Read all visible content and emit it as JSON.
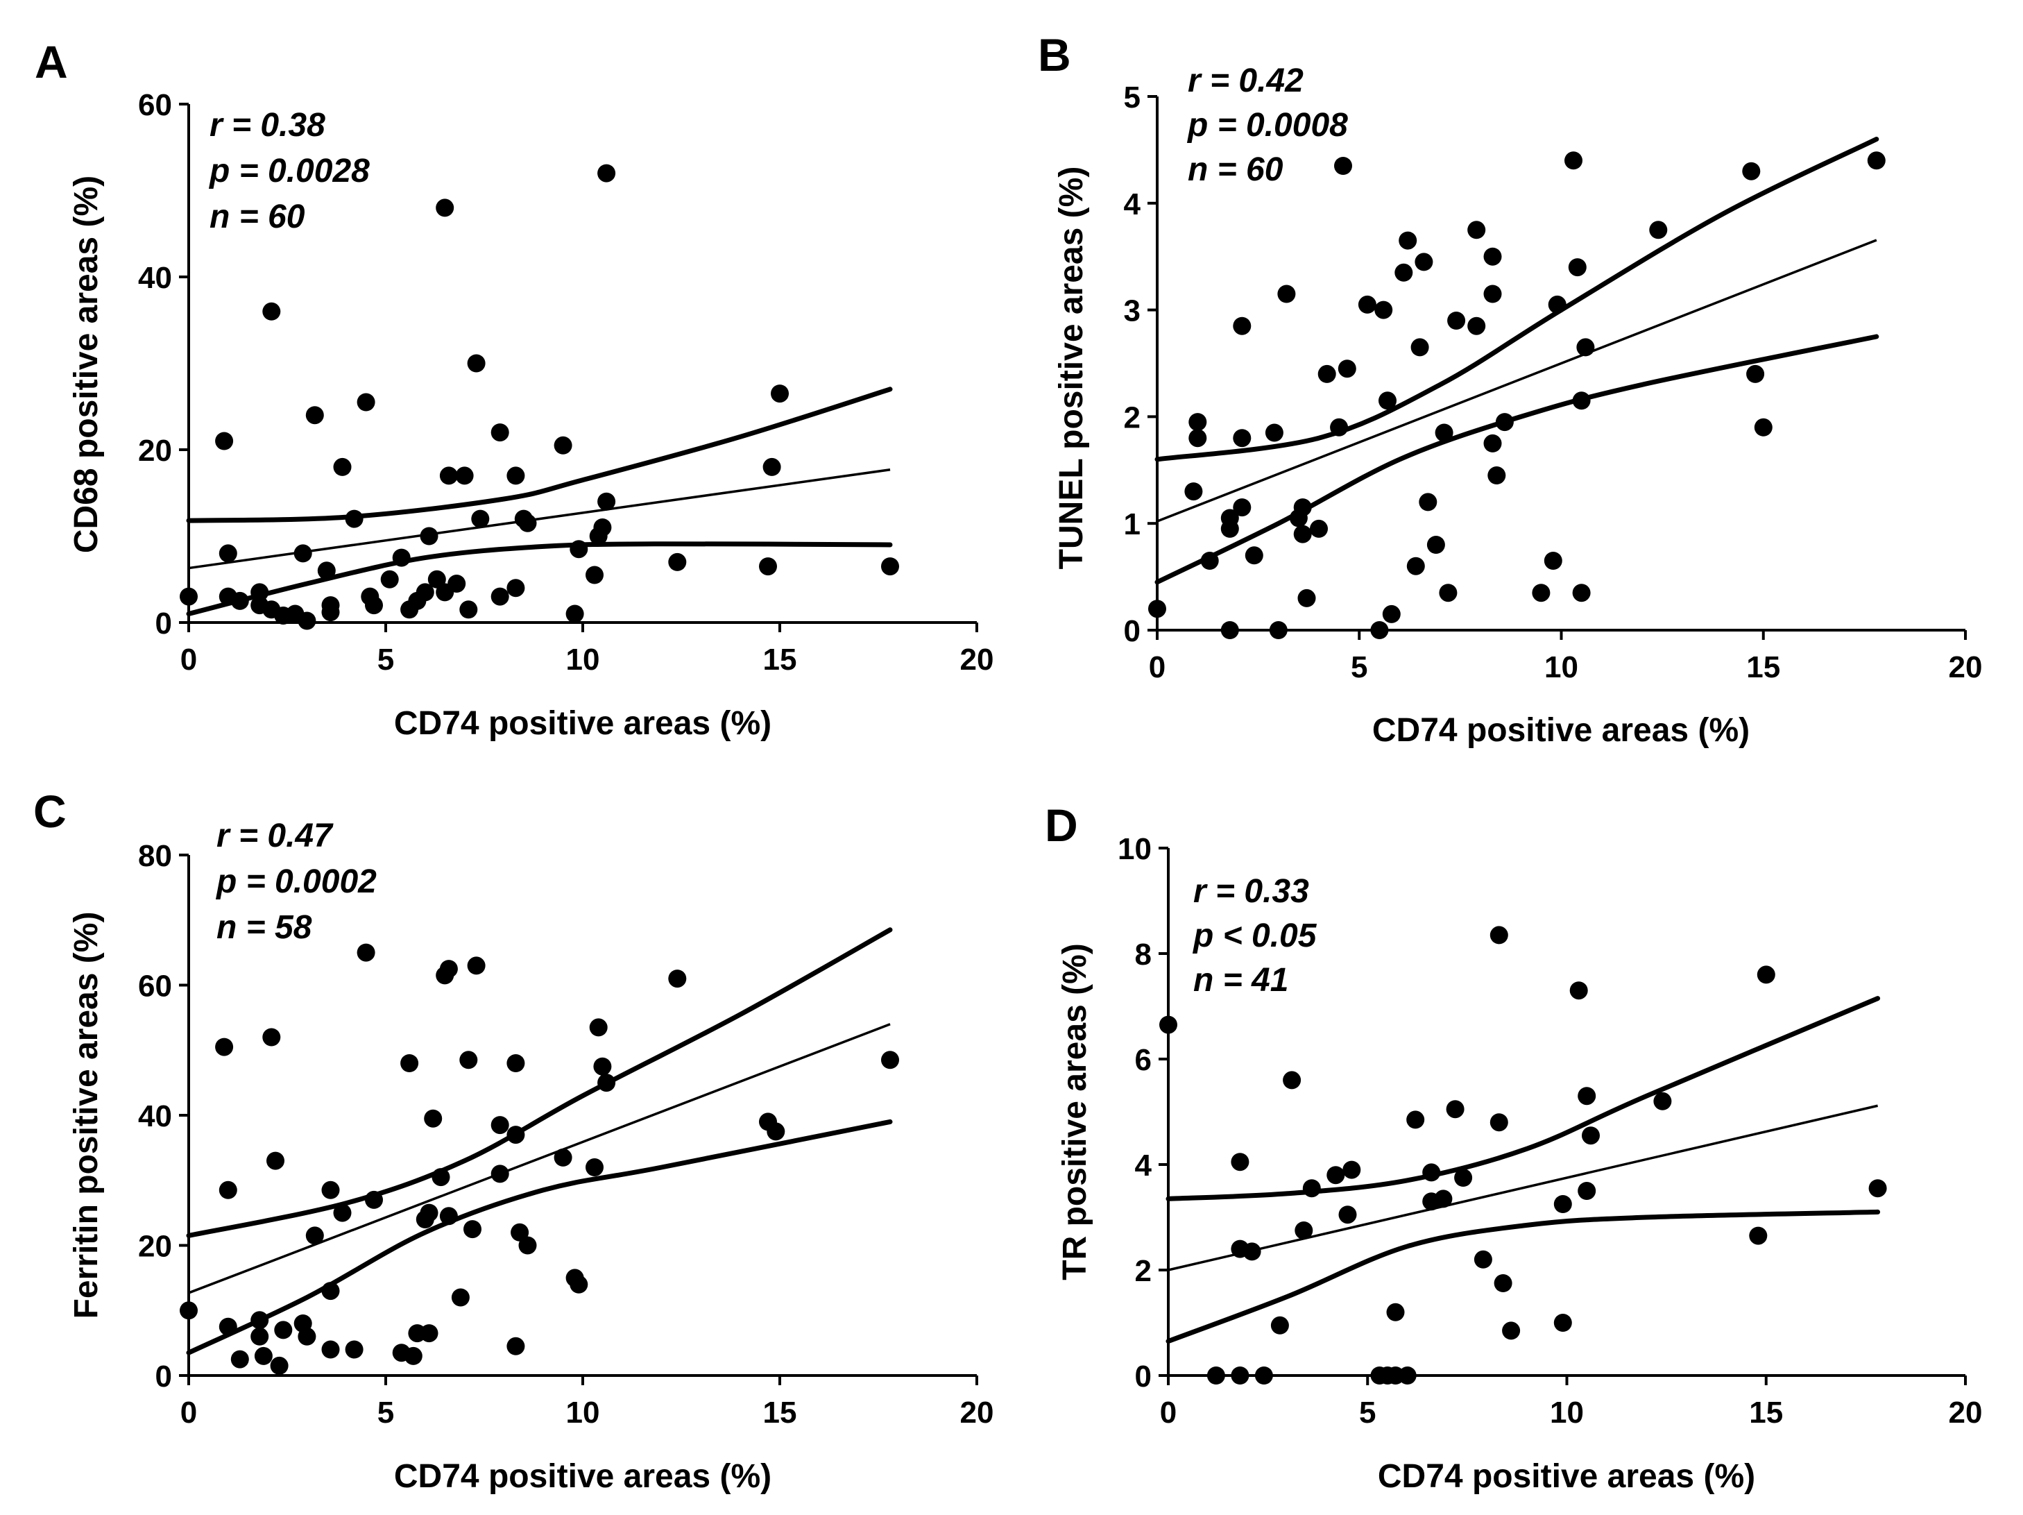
{
  "figure": {
    "background": "#ffffff",
    "ink_color": "#000000"
  },
  "chart_data": [
    {
      "panel": "A",
      "type": "scatter",
      "xlabel": "CD74 positive areas (%)",
      "ylabel": "CD68 positive areas (%)",
      "xlim": [
        0,
        20
      ],
      "ylim": [
        0,
        60
      ],
      "xticks": [
        0,
        5,
        10,
        15,
        20
      ],
      "yticks": [
        0,
        20,
        40,
        60
      ],
      "stats": [
        "r = 0.38",
        "p = 0.0028",
        "n = 60"
      ],
      "points": [
        [
          0,
          3
        ],
        [
          0.9,
          21
        ],
        [
          1,
          8
        ],
        [
          1,
          3
        ],
        [
          1.3,
          2.5
        ],
        [
          1.8,
          3.5
        ],
        [
          1.8,
          2
        ],
        [
          2.1,
          36
        ],
        [
          2.1,
          1.5
        ],
        [
          2.4,
          0.8
        ],
        [
          2.7,
          1
        ],
        [
          2.9,
          8
        ],
        [
          3,
          0.2
        ],
        [
          3.2,
          24
        ],
        [
          3.5,
          6
        ],
        [
          3.6,
          2
        ],
        [
          3.6,
          1.2
        ],
        [
          3.9,
          18
        ],
        [
          4.2,
          12
        ],
        [
          4.5,
          25.5
        ],
        [
          4.6,
          3
        ],
        [
          4.7,
          2
        ],
        [
          5.1,
          5
        ],
        [
          5.4,
          7.5
        ],
        [
          5.6,
          1.5
        ],
        [
          5.8,
          2.5
        ],
        [
          6,
          3.5
        ],
        [
          6.1,
          10
        ],
        [
          6.3,
          5
        ],
        [
          6.5,
          48
        ],
        [
          6.5,
          3.5
        ],
        [
          6.6,
          17
        ],
        [
          6.8,
          4.5
        ],
        [
          7,
          17
        ],
        [
          7.1,
          1.5
        ],
        [
          7.3,
          30
        ],
        [
          7.4,
          12
        ],
        [
          7.9,
          22
        ],
        [
          7.9,
          3
        ],
        [
          8.3,
          17
        ],
        [
          8.3,
          4
        ],
        [
          8.5,
          12
        ],
        [
          8.6,
          11.5
        ],
        [
          9.5,
          20.5
        ],
        [
          9.8,
          1
        ],
        [
          9.9,
          8.5
        ],
        [
          10.3,
          5.5
        ],
        [
          10.4,
          10
        ],
        [
          10.5,
          11
        ],
        [
          10.6,
          52
        ],
        [
          10.6,
          14
        ],
        [
          12.4,
          7
        ],
        [
          14.7,
          6.5
        ],
        [
          14.8,
          18
        ],
        [
          15,
          26.5
        ],
        [
          17.8,
          6.5
        ]
      ],
      "fit": {
        "intercept": 6.3,
        "slope": 0.64
      },
      "ci_upper": [
        [
          0,
          11.8
        ],
        [
          4,
          12.2
        ],
        [
          8,
          14.3
        ],
        [
          10,
          16.5
        ],
        [
          14,
          21.5
        ],
        [
          17.8,
          27
        ]
      ],
      "ci_lower": [
        [
          0,
          1
        ],
        [
          3,
          4.5
        ],
        [
          6,
          7.5
        ],
        [
          9,
          8.8
        ],
        [
          12,
          9.1
        ],
        [
          17.8,
          9
        ]
      ]
    },
    {
      "panel": "B",
      "type": "scatter",
      "xlabel": "CD74 positive areas (%)",
      "ylabel": "TUNEL positive areas (%)",
      "xlim": [
        0,
        20
      ],
      "ylim": [
        0,
        5
      ],
      "xticks": [
        0,
        5,
        10,
        15,
        20
      ],
      "yticks": [
        0,
        1,
        2,
        3,
        4,
        5
      ],
      "stats": [
        "r = 0.42",
        "p = 0.0008",
        "n = 60"
      ],
      "points": [
        [
          0,
          0.2
        ],
        [
          0.9,
          1.3
        ],
        [
          1,
          1.8
        ],
        [
          1,
          1.95
        ],
        [
          1.3,
          0.65
        ],
        [
          1.8,
          1.05
        ],
        [
          1.8,
          0.95
        ],
        [
          1.8,
          0
        ],
        [
          2.1,
          2.85
        ],
        [
          2.1,
          1.8
        ],
        [
          2.1,
          1.15
        ],
        [
          2.4,
          0.7
        ],
        [
          2.9,
          1.85
        ],
        [
          3,
          0
        ],
        [
          3.2,
          3.15
        ],
        [
          3.5,
          1.05
        ],
        [
          3.6,
          1.15
        ],
        [
          3.6,
          0.9
        ],
        [
          3.7,
          0.3
        ],
        [
          4,
          0.95
        ],
        [
          4.2,
          2.4
        ],
        [
          4.5,
          1.9
        ],
        [
          4.6,
          4.35
        ],
        [
          4.7,
          2.45
        ],
        [
          5.2,
          3.05
        ],
        [
          5.5,
          0
        ],
        [
          5.6,
          3
        ],
        [
          5.7,
          2.15
        ],
        [
          5.8,
          0.15
        ],
        [
          6.1,
          3.35
        ],
        [
          6.2,
          3.65
        ],
        [
          6.4,
          0.6
        ],
        [
          6.5,
          2.65
        ],
        [
          6.6,
          3.45
        ],
        [
          6.7,
          1.2
        ],
        [
          6.9,
          0.8
        ],
        [
          7.1,
          1.85
        ],
        [
          7.2,
          0.35
        ],
        [
          7.4,
          2.9
        ],
        [
          7.9,
          3.75
        ],
        [
          7.9,
          2.85
        ],
        [
          8.3,
          3.5
        ],
        [
          8.3,
          3.15
        ],
        [
          8.3,
          1.75
        ],
        [
          8.4,
          1.45
        ],
        [
          8.6,
          1.95
        ],
        [
          9.5,
          0.35
        ],
        [
          9.8,
          0.65
        ],
        [
          9.9,
          3.05
        ],
        [
          10.3,
          4.4
        ],
        [
          10.4,
          3.4
        ],
        [
          10.5,
          2.15
        ],
        [
          10.5,
          0.35
        ],
        [
          10.6,
          2.65
        ],
        [
          12.4,
          3.75
        ],
        [
          14.7,
          4.3
        ],
        [
          14.8,
          2.4
        ],
        [
          15,
          1.9
        ],
        [
          17.8,
          4.4
        ]
      ],
      "fit": {
        "intercept": 1.02,
        "slope": 0.148
      },
      "ci_upper": [
        [
          0,
          1.6
        ],
        [
          4,
          1.8
        ],
        [
          7,
          2.3
        ],
        [
          10,
          3
        ],
        [
          14,
          3.9
        ],
        [
          17.8,
          4.6
        ]
      ],
      "ci_lower": [
        [
          0,
          0.45
        ],
        [
          3,
          1
        ],
        [
          6,
          1.6
        ],
        [
          9,
          2
        ],
        [
          12,
          2.3
        ],
        [
          17.8,
          2.75
        ]
      ]
    },
    {
      "panel": "C",
      "type": "scatter",
      "xlabel": "CD74 positive areas (%)",
      "ylabel": "Ferritin positive areas (%)",
      "xlim": [
        0,
        20
      ],
      "ylim": [
        0,
        80
      ],
      "xticks": [
        0,
        5,
        10,
        15,
        20
      ],
      "yticks": [
        0,
        20,
        40,
        60,
        80
      ],
      "stats": [
        "r = 0.47",
        "p = 0.0002",
        "n = 58"
      ],
      "points": [
        [
          0,
          10
        ],
        [
          0.9,
          50.5
        ],
        [
          1,
          28.5
        ],
        [
          1,
          7.5
        ],
        [
          1.3,
          2.5
        ],
        [
          1.8,
          8.5
        ],
        [
          1.8,
          6
        ],
        [
          1.9,
          3
        ],
        [
          2.1,
          52
        ],
        [
          2.2,
          33
        ],
        [
          2.3,
          1.5
        ],
        [
          2.4,
          7
        ],
        [
          2.9,
          8
        ],
        [
          3,
          6
        ],
        [
          3.2,
          21.5
        ],
        [
          3.6,
          28.5
        ],
        [
          3.6,
          4
        ],
        [
          3.6,
          13
        ],
        [
          3.9,
          25
        ],
        [
          4.2,
          4
        ],
        [
          4.5,
          65
        ],
        [
          4.7,
          27
        ],
        [
          5.4,
          3.5
        ],
        [
          5.6,
          48
        ],
        [
          5.7,
          3
        ],
        [
          5.8,
          6.5
        ],
        [
          6,
          24
        ],
        [
          6.1,
          6.5
        ],
        [
          6.1,
          25
        ],
        [
          6.2,
          39.5
        ],
        [
          6.4,
          30.5
        ],
        [
          6.5,
          61.5
        ],
        [
          6.6,
          62.5
        ],
        [
          6.6,
          24.5
        ],
        [
          6.9,
          12
        ],
        [
          7.1,
          48.5
        ],
        [
          7.2,
          22.5
        ],
        [
          7.3,
          63
        ],
        [
          7.9,
          38.5
        ],
        [
          7.9,
          31
        ],
        [
          8.3,
          48
        ],
        [
          8.3,
          37
        ],
        [
          8.3,
          4.5
        ],
        [
          8.4,
          22
        ],
        [
          8.6,
          20
        ],
        [
          9.5,
          33.5
        ],
        [
          9.8,
          15
        ],
        [
          9.9,
          14
        ],
        [
          10.3,
          32
        ],
        [
          10.4,
          53.5
        ],
        [
          10.5,
          47.5
        ],
        [
          10.6,
          45
        ],
        [
          12.4,
          61
        ],
        [
          14.7,
          39
        ],
        [
          14.9,
          37.5
        ],
        [
          17.8,
          48.5
        ]
      ],
      "fit": {
        "intercept": 12.7,
        "slope": 2.32
      },
      "ci_upper": [
        [
          0,
          21.5
        ],
        [
          4,
          26.5
        ],
        [
          7,
          33
        ],
        [
          10,
          43
        ],
        [
          14,
          55.5
        ],
        [
          17.8,
          68.5
        ]
      ],
      "ci_lower": [
        [
          0,
          3.5
        ],
        [
          3,
          12
        ],
        [
          6,
          22
        ],
        [
          9,
          28.5
        ],
        [
          12,
          32
        ],
        [
          17.8,
          39
        ]
      ]
    },
    {
      "panel": "D",
      "type": "scatter",
      "xlabel": "CD74 positive areas (%)",
      "ylabel": "TR positive areas (%)",
      "xlim": [
        0,
        20
      ],
      "ylim": [
        0,
        10
      ],
      "xticks": [
        0,
        5,
        10,
        15,
        20
      ],
      "yticks": [
        0,
        2,
        4,
        6,
        8,
        10
      ],
      "stats": [
        "r = 0.33",
        "p < 0.05",
        "n = 41"
      ],
      "points": [
        [
          0,
          6.65
        ],
        [
          1.2,
          0
        ],
        [
          1.8,
          4.05
        ],
        [
          1.8,
          2.4
        ],
        [
          1.8,
          0
        ],
        [
          2.1,
          2.35
        ],
        [
          2.4,
          0
        ],
        [
          2.8,
          0.95
        ],
        [
          3.1,
          5.6
        ],
        [
          3.4,
          2.75
        ],
        [
          3.6,
          3.55
        ],
        [
          4.2,
          3.8
        ],
        [
          4.5,
          3.05
        ],
        [
          4.6,
          3.9
        ],
        [
          5.3,
          0
        ],
        [
          5.5,
          0
        ],
        [
          5.7,
          0
        ],
        [
          5.7,
          1.2
        ],
        [
          6,
          0
        ],
        [
          6.2,
          4.85
        ],
        [
          6.6,
          3.3
        ],
        [
          6.6,
          3.85
        ],
        [
          6.9,
          3.35
        ],
        [
          7.2,
          5.05
        ],
        [
          7.4,
          3.75
        ],
        [
          7.9,
          2.2
        ],
        [
          8.3,
          8.35
        ],
        [
          8.3,
          4.8
        ],
        [
          8.4,
          1.75
        ],
        [
          8.6,
          0.85
        ],
        [
          9.9,
          3.25
        ],
        [
          9.9,
          1
        ],
        [
          10.3,
          7.3
        ],
        [
          10.5,
          3.5
        ],
        [
          10.5,
          5.3
        ],
        [
          10.6,
          4.55
        ],
        [
          12.4,
          5.2
        ],
        [
          14.8,
          2.65
        ],
        [
          15,
          7.6
        ],
        [
          17.8,
          3.55
        ]
      ],
      "fit": {
        "intercept": 2,
        "slope": 0.175
      },
      "ci_upper": [
        [
          0,
          3.35
        ],
        [
          3,
          3.45
        ],
        [
          6,
          3.7
        ],
        [
          9,
          4.3
        ],
        [
          12,
          5.3
        ],
        [
          17.8,
          7.15
        ]
      ],
      "ci_lower": [
        [
          0,
          0.65
        ],
        [
          3,
          1.5
        ],
        [
          6,
          2.45
        ],
        [
          9,
          2.85
        ],
        [
          12,
          3.0
        ],
        [
          17.8,
          3.1
        ]
      ]
    }
  ]
}
